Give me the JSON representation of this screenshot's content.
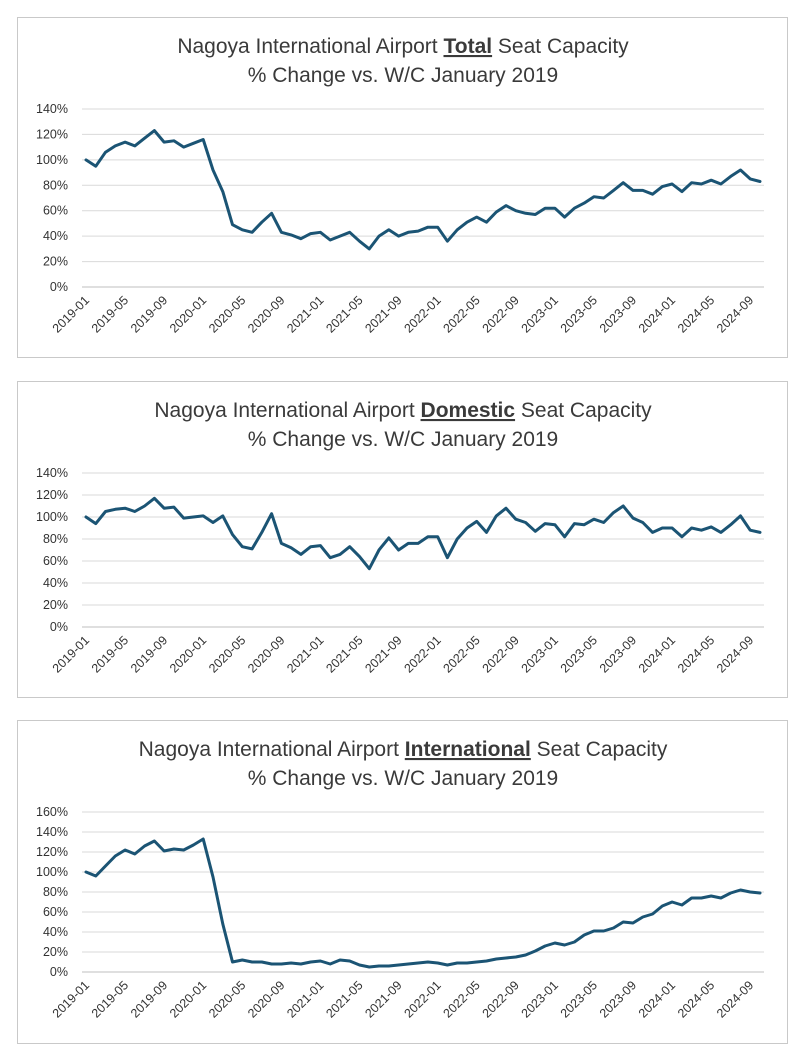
{
  "chart_data": [
    {
      "type": "line",
      "title_prefix": "Nagoya International Airport ",
      "title_emphasis": "Total",
      "title_suffix": " Seat Capacity",
      "subtitle": "% Change vs. W/C January 2019",
      "ylim": [
        0,
        140
      ],
      "yticks": [
        "0%",
        "20%",
        "40%",
        "60%",
        "80%",
        "100%",
        "120%",
        "140%"
      ],
      "xtick_labels": [
        "2019-01",
        "2019-05",
        "2019-09",
        "2020-01",
        "2020-05",
        "2020-09",
        "2021-01",
        "2021-05",
        "2021-09",
        "2022-01",
        "2022-05",
        "2022-09",
        "2023-01",
        "2023-05",
        "2023-09",
        "2024-01",
        "2024-05",
        "2024-09"
      ],
      "grid": true,
      "line_color": "#1b5474",
      "series": [
        {
          "values": [
            100,
            95,
            106,
            111,
            114,
            111,
            117,
            123,
            114,
            115,
            110,
            113,
            116,
            92,
            75,
            49,
            45,
            43,
            51,
            58,
            43,
            41,
            38,
            42,
            43,
            37,
            40,
            43,
            36,
            30,
            40,
            45,
            40,
            43,
            44,
            47,
            47,
            36,
            45,
            51,
            55,
            51,
            59,
            64,
            60,
            58,
            57,
            62,
            62,
            55,
            62,
            66,
            71,
            70,
            76,
            82,
            76,
            76,
            73,
            79,
            81,
            75,
            82,
            81,
            84,
            81,
            87,
            92,
            85,
            83
          ]
        }
      ]
    },
    {
      "type": "line",
      "title_prefix": "Nagoya International Airport ",
      "title_emphasis": "Domestic",
      "title_suffix": " Seat Capacity",
      "subtitle": "% Change vs. W/C January 2019",
      "ylim": [
        0,
        140
      ],
      "yticks": [
        "0%",
        "20%",
        "40%",
        "60%",
        "80%",
        "100%",
        "120%",
        "140%"
      ],
      "xtick_labels": [
        "2019-01",
        "2019-05",
        "2019-09",
        "2020-01",
        "2020-05",
        "2020-09",
        "2021-01",
        "2021-05",
        "2021-09",
        "2022-01",
        "2022-05",
        "2022-09",
        "2023-01",
        "2023-05",
        "2023-09",
        "2024-01",
        "2024-05",
        "2024-09"
      ],
      "grid": true,
      "line_color": "#1b5474",
      "series": [
        {
          "values": [
            100,
            94,
            105,
            107,
            108,
            105,
            110,
            117,
            108,
            109,
            99,
            100,
            101,
            95,
            101,
            84,
            73,
            71,
            86,
            103,
            76,
            72,
            66,
            73,
            74,
            63,
            66,
            73,
            64,
            53,
            70,
            81,
            70,
            76,
            76,
            82,
            82,
            63,
            80,
            90,
            96,
            86,
            101,
            108,
            98,
            95,
            87,
            94,
            93,
            82,
            94,
            93,
            98,
            95,
            104,
            110,
            99,
            95,
            86,
            90,
            90,
            82,
            90,
            88,
            91,
            86,
            93,
            101,
            88,
            86
          ]
        }
      ]
    },
    {
      "type": "line",
      "title_prefix": "Nagoya International Airport ",
      "title_emphasis": "International",
      "title_suffix": " Seat Capacity",
      "subtitle": "% Change vs. W/C January 2019",
      "ylim": [
        0,
        160
      ],
      "yticks": [
        "0%",
        "20%",
        "40%",
        "60%",
        "80%",
        "100%",
        "120%",
        "140%",
        "160%"
      ],
      "xtick_labels": [
        "2019-01",
        "2019-05",
        "2019-09",
        "2020-01",
        "2020-05",
        "2020-09",
        "2021-01",
        "2021-05",
        "2021-09",
        "2022-01",
        "2022-05",
        "2022-09",
        "2023-01",
        "2023-05",
        "2023-09",
        "2024-01",
        "2024-05",
        "2024-09"
      ],
      "grid": true,
      "line_color": "#1b5474",
      "series": [
        {
          "values": [
            100,
            96,
            106,
            116,
            122,
            118,
            126,
            131,
            121,
            123,
            122,
            127,
            133,
            95,
            48,
            10,
            12,
            10,
            10,
            8,
            8,
            9,
            8,
            10,
            11,
            8,
            12,
            11,
            7,
            5,
            6,
            6,
            7,
            8,
            9,
            10,
            9,
            7,
            9,
            9,
            10,
            11,
            13,
            14,
            15,
            17,
            21,
            26,
            29,
            27,
            30,
            37,
            41,
            41,
            44,
            50,
            49,
            55,
            58,
            66,
            70,
            67,
            74,
            74,
            76,
            74,
            79,
            82,
            80,
            79
          ]
        }
      ]
    }
  ]
}
